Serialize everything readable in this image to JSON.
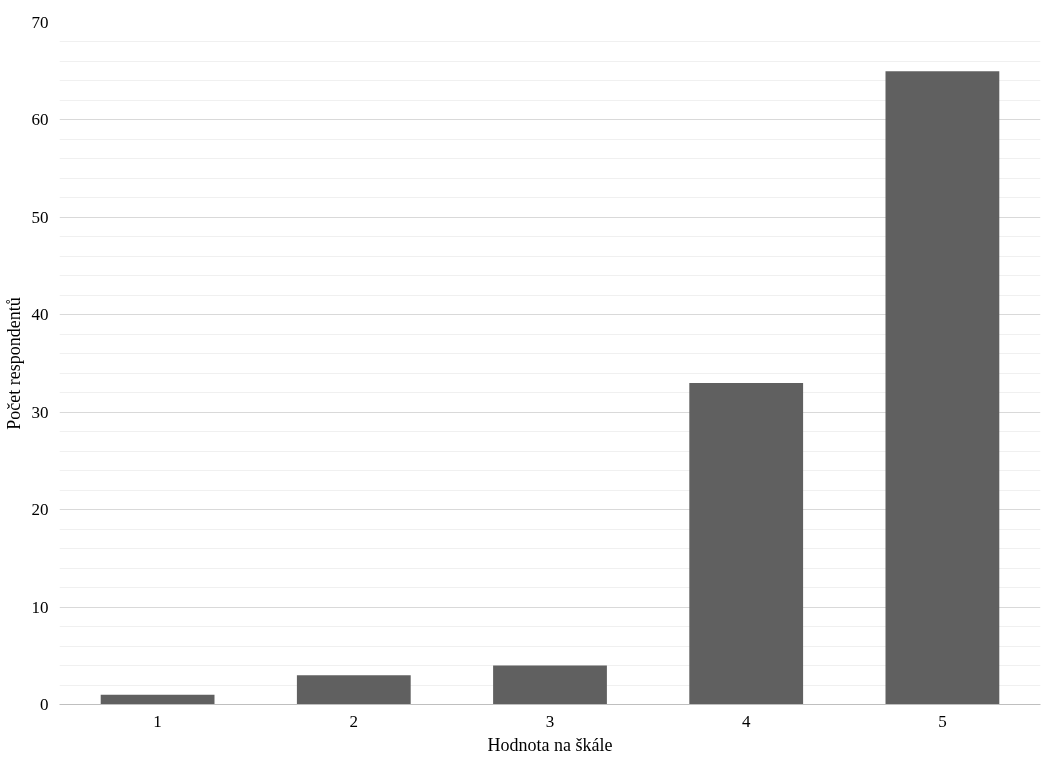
{
  "chart_data": {
    "type": "bar",
    "xlabel": "Hodnota na škále",
    "ylabel": "Počet respondentů",
    "categories": [
      "1",
      "2",
      "3",
      "4",
      "5"
    ],
    "series": [
      {
        "color": "#606060",
        "values": [
          1,
          3,
          4,
          33,
          65
        ]
      }
    ],
    "ylim": [
      0,
      70
    ],
    "yticks": [
      0,
      {
        "value": 2,
        "label": null
      },
      {
        "value": 4,
        "label": null
      },
      {
        "value": 6,
        "label": null
      },
      {
        "value": 8,
        "label": null
      },
      10,
      {
        "value": 12,
        "label": null
      },
      {
        "value": 14,
        "label": null
      },
      {
        "value": 16,
        "label": null
      },
      {
        "value": 18,
        "label": null
      },
      20,
      {
        "value": 22,
        "label": null
      },
      {
        "value": 24,
        "label": null
      },
      {
        "value": 26,
        "label": null
      },
      {
        "value": 28,
        "label": null
      },
      30,
      {
        "value": 32,
        "label": null
      },
      {
        "value": 34,
        "label": null
      },
      {
        "value": 36,
        "label": null
      },
      {
        "value": 38,
        "label": null
      },
      40,
      {
        "value": 42,
        "label": null
      },
      {
        "value": 44,
        "label": null
      },
      {
        "value": 46,
        "label": null
      },
      {
        "value": 48,
        "label": null
      },
      50,
      {
        "value": 52,
        "label": null
      },
      {
        "value": 54,
        "label": null
      },
      {
        "value": 56,
        "label": null
      },
      {
        "value": 58,
        "label": null
      },
      60,
      {
        "value": 62,
        "label": null
      },
      {
        "value": 64,
        "label": null
      },
      {
        "value": 66,
        "label": null
      },
      {
        "value": 68,
        "label": null
      },
      70
    ],
    "grid": "y"
  }
}
